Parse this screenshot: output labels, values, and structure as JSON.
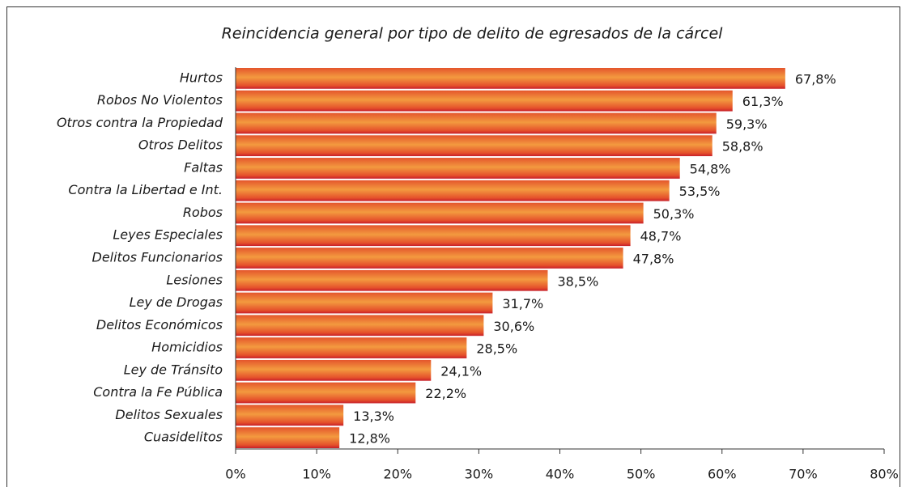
{
  "chart_data": {
    "type": "barh",
    "title": "Reincidencia general por tipo de delito de egresados de la cárcel",
    "categories": [
      "Hurtos",
      "Robos No Violentos",
      "Otros contra la Propiedad",
      "Otros Delitos",
      "Faltas",
      "Contra la Libertad e Int.",
      "Robos",
      "Leyes Especiales",
      "Delitos Funcionarios",
      "Lesiones",
      "Ley de Drogas",
      "Delitos Económicos",
      "Homicidios",
      "Ley de Tránsito",
      "Contra la Fe Pública",
      "Delitos Sexuales",
      "Cuasidelitos"
    ],
    "values": [
      67.8,
      61.3,
      59.3,
      58.8,
      54.8,
      53.5,
      50.3,
      48.7,
      47.8,
      38.5,
      31.7,
      30.6,
      28.5,
      24.1,
      22.2,
      13.3,
      12.8
    ],
    "value_labels": [
      "67,8%",
      "61,3%",
      "59,3%",
      "58,8%",
      "54,8%",
      "53,5%",
      "50,3%",
      "48,7%",
      "47,8%",
      "38,5%",
      "31,7%",
      "30,6%",
      "28,5%",
      "24,1%",
      "22,2%",
      "13,3%",
      "12,8%"
    ],
    "color": "#f39a3f",
    "xlim": [
      0,
      80
    ],
    "xticks": [
      {
        "value": 0,
        "label": "0%"
      },
      {
        "value": 10,
        "label": "10%"
      },
      {
        "value": 20,
        "label": "20%"
      },
      {
        "value": 30,
        "label": "30%"
      },
      {
        "value": 40,
        "label": "40%"
      },
      {
        "value": 50,
        "label": "50%"
      },
      {
        "value": 60,
        "label": "60%"
      },
      {
        "value": 70,
        "label": "70%"
      },
      {
        "value": 80,
        "label": "80%"
      }
    ]
  }
}
